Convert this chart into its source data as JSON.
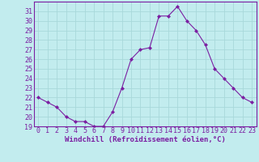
{
  "x": [
    0,
    1,
    2,
    3,
    4,
    5,
    6,
    7,
    8,
    9,
    10,
    11,
    12,
    13,
    14,
    15,
    16,
    17,
    18,
    19,
    20,
    21,
    22,
    23
  ],
  "y": [
    22,
    21.5,
    21,
    20,
    19.5,
    19.5,
    19,
    19,
    20.5,
    23,
    26,
    27,
    27.2,
    30.5,
    30.5,
    31.5,
    30,
    29,
    27.5,
    25,
    24,
    23,
    22,
    21.5
  ],
  "line_color": "#7b1fa2",
  "marker": "D",
  "marker_size": 2,
  "bg_color": "#c2ecee",
  "grid_color": "#a8d8da",
  "xlabel": "Windchill (Refroidissement éolien,°C)",
  "xlabel_color": "#7b1fa2",
  "tick_color": "#7b1fa2",
  "ylim": [
    19,
    32
  ],
  "yticks": [
    19,
    20,
    21,
    22,
    23,
    24,
    25,
    26,
    27,
    28,
    29,
    30,
    31
  ],
  "xlim": [
    -0.5,
    23.5
  ],
  "xticks": [
    0,
    1,
    2,
    3,
    4,
    5,
    6,
    7,
    8,
    9,
    10,
    11,
    12,
    13,
    14,
    15,
    16,
    17,
    18,
    19,
    20,
    21,
    22,
    23
  ],
  "spine_color": "#7b1fa2",
  "label_fontsize": 6.5,
  "tick_fontsize": 6
}
